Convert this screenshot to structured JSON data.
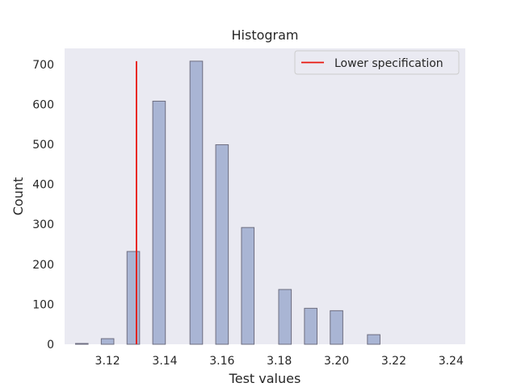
{
  "chart_data": {
    "type": "bar",
    "title": "Histogram",
    "xlabel": "Test values",
    "ylabel": "Count",
    "xlim": [
      3.105,
      3.245
    ],
    "ylim": [
      0,
      740
    ],
    "xticks": [
      3.12,
      3.14,
      3.16,
      3.18,
      3.2,
      3.22,
      3.24
    ],
    "xtick_labels": [
      "3.12",
      "3.14",
      "3.16",
      "3.18",
      "3.20",
      "3.22",
      "3.24"
    ],
    "yticks": [
      0,
      100,
      200,
      300,
      400,
      500,
      600,
      700
    ],
    "ytick_labels": [
      "0",
      "100",
      "200",
      "300",
      "400",
      "500",
      "600",
      "700"
    ],
    "bar_width": 0.0044,
    "bins": [
      3.111,
      3.12,
      3.129,
      3.138,
      3.151,
      3.16,
      3.169,
      3.182,
      3.191,
      3.2,
      3.213
    ],
    "counts": [
      2,
      14,
      232,
      608,
      708,
      499,
      292,
      137,
      90,
      84,
      24
    ],
    "spec_line": {
      "name": "Lower specification",
      "x": 3.1301,
      "y_range": [
        0,
        708
      ]
    },
    "grid": false,
    "legend_position": "top-right",
    "colors": {
      "background": "#eaeaf2",
      "bar_fill": "#a9b5d4",
      "bar_edge": "#6e6e80",
      "spec_line": "#e8140c"
    }
  }
}
